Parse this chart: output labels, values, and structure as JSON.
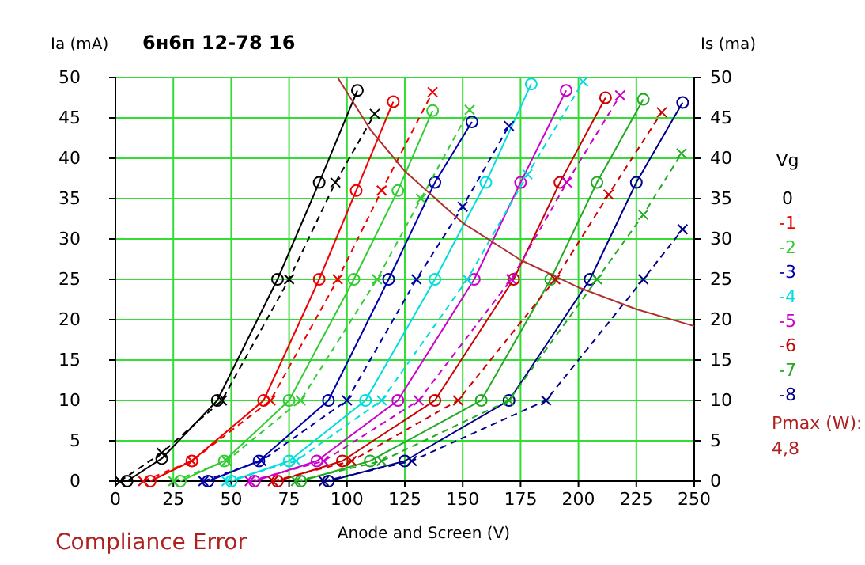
{
  "chart_data": {
    "type": "line",
    "title": "6н6п 12-78 16",
    "xlabel": "Anode and Screen (V)",
    "ylabel": "Ia (mA)",
    "y2label": "Is (ma)",
    "legend_title": "Vg",
    "legend": "right",
    "grid": true,
    "xlim": [
      0,
      250
    ],
    "xticks": [
      0,
      25,
      50,
      75,
      100,
      125,
      150,
      175,
      200,
      225,
      250
    ],
    "ylim": [
      0,
      50
    ],
    "yticks": [
      0,
      5,
      10,
      15,
      20,
      25,
      30,
      35,
      40,
      45,
      50
    ],
    "y2lim": [
      0,
      50
    ],
    "y2ticks": [
      0,
      5,
      10,
      15,
      20,
      25,
      30,
      35,
      40,
      45,
      50
    ],
    "annotations": [
      "Pmax (W):",
      "4,8",
      "Compliance Error"
    ],
    "series": [
      {
        "name": "0",
        "color": "#000000",
        "marker": "circle",
        "line_style": "solid",
        "x": [
          5,
          20,
          44,
          70,
          88,
          104.5
        ],
        "values": [
          0,
          2.8,
          10,
          25,
          37,
          48.4
        ]
      },
      {
        "name": "-1",
        "color": "#ee0000",
        "marker": "circle",
        "line_style": "solid",
        "x": [
          15,
          33,
          64,
          88,
          104,
          120
        ],
        "values": [
          0,
          2.5,
          10,
          25,
          36,
          47
        ]
      },
      {
        "name": "-2",
        "color": "#33cc33",
        "marker": "circle",
        "line_style": "solid",
        "x": [
          28,
          47,
          75,
          103,
          122,
          137
        ],
        "values": [
          0,
          2.5,
          10,
          25,
          36,
          45.9
        ]
      },
      {
        "name": "-3",
        "color": "#0000aa",
        "marker": "circle",
        "line_style": "solid",
        "x": [
          40,
          62,
          92,
          118,
          138,
          154
        ],
        "values": [
          0,
          2.5,
          10,
          25,
          37,
          44.5
        ]
      },
      {
        "name": "-4",
        "color": "#00dddd",
        "marker": "circle",
        "line_style": "solid",
        "x": [
          50,
          75,
          108,
          138,
          160,
          179.6
        ],
        "values": [
          0,
          2.5,
          10,
          25,
          37,
          49.2
        ]
      },
      {
        "name": "-5",
        "color": "#cc00cc",
        "marker": "circle",
        "line_style": "solid",
        "x": [
          60,
          87,
          122,
          155,
          175,
          194.7
        ],
        "values": [
          0,
          2.5,
          10,
          25,
          37,
          48.4
        ]
      },
      {
        "name": "-6",
        "color": "#cc0000",
        "marker": "circle",
        "line_style": "solid",
        "x": [
          70,
          98,
          138,
          172,
          192,
          211.7
        ],
        "values": [
          0,
          2.5,
          10,
          25,
          37,
          47.5
        ]
      },
      {
        "name": "-7",
        "color": "#22aa22",
        "marker": "circle",
        "line_style": "solid",
        "x": [
          80,
          110,
          158,
          188,
          208,
          228
        ],
        "values": [
          0,
          2.5,
          10,
          25,
          37,
          47.3
        ]
      },
      {
        "name": "-8",
        "color": "#000088",
        "marker": "circle",
        "line_style": "solid",
        "x": [
          92,
          125,
          170,
          205,
          225,
          245
        ],
        "values": [
          0,
          2.5,
          10,
          25,
          37,
          46.9
        ]
      },
      {
        "color": "#000000",
        "marker": "cross",
        "line_style": "dashed",
        "x": [
          2,
          20,
          46,
          75,
          95,
          112
        ],
        "values": [
          0,
          3.5,
          10,
          25,
          37,
          45.5
        ]
      },
      {
        "color": "#ee0000",
        "marker": "cross",
        "line_style": "dashed",
        "x": [
          12,
          33,
          67,
          96,
          115,
          137
        ],
        "values": [
          0,
          2.5,
          10,
          25,
          36,
          48.2
        ]
      },
      {
        "color": "#33cc33",
        "marker": "cross",
        "line_style": "dashed",
        "x": [
          25,
          48,
          80,
          113,
          132,
          153
        ],
        "values": [
          0,
          2.5,
          10,
          25,
          35,
          46
        ]
      },
      {
        "color": "#0000aa",
        "marker": "cross",
        "line_style": "dashed",
        "x": [
          38,
          63,
          100,
          130,
          150,
          170
        ],
        "values": [
          0,
          2.5,
          10,
          25,
          34,
          44
        ]
      },
      {
        "color": "#00dddd",
        "marker": "cross",
        "line_style": "dashed",
        "x": [
          48,
          78,
          115,
          152,
          178,
          202
        ],
        "values": [
          0,
          2.5,
          10,
          25,
          38,
          49.5
        ]
      },
      {
        "color": "#cc00cc",
        "marker": "cross",
        "line_style": "dashed",
        "x": [
          58,
          90,
          131,
          171,
          195,
          218
        ],
        "values": [
          0,
          2.5,
          10,
          25,
          37,
          47.8
        ]
      },
      {
        "color": "#cc0000",
        "marker": "cross",
        "line_style": "dashed",
        "x": [
          68,
          102,
          148,
          190,
          213,
          236
        ],
        "values": [
          0,
          2.5,
          10,
          25,
          35.5,
          45.7
        ]
      },
      {
        "color": "#22aa22",
        "marker": "cross",
        "line_style": "dashed",
        "x": [
          78,
          115,
          170,
          208,
          228,
          244.5
        ],
        "values": [
          0,
          2.5,
          10,
          25,
          33,
          40.6
        ]
      },
      {
        "color": "#000088",
        "marker": "cross",
        "line_style": "dashed",
        "x": [
          90,
          128,
          186,
          228,
          245
        ],
        "values": [
          0,
          2.5,
          10,
          25,
          31.2
        ]
      },
      {
        "color": "#b03030",
        "marker": "none",
        "line_style": "solid",
        "x": [
          96,
          110,
          125,
          150,
          175,
          200,
          225,
          250
        ],
        "values": [
          50,
          43.6,
          38.4,
          32,
          27.4,
          24,
          21.3,
          19.2
        ]
      }
    ]
  }
}
